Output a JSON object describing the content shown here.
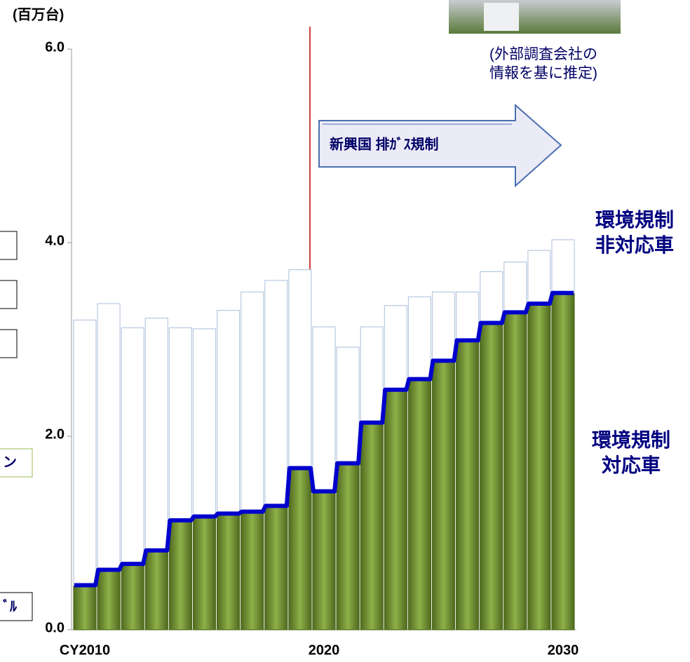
{
  "chart_data": {
    "type": "stacked-bar",
    "y_unit_label": "(百万台)",
    "categories": [
      "CY2010",
      null,
      null,
      null,
      null,
      null,
      null,
      null,
      null,
      null,
      "2020",
      null,
      null,
      null,
      null,
      null,
      null,
      null,
      null,
      null,
      "2030"
    ],
    "series": [
      {
        "name": "環境規制\n対応車",
        "color": "#77933c",
        "values": [
          0.46,
          0.62,
          0.68,
          0.82,
          1.13,
          1.17,
          1.2,
          1.22,
          1.28,
          1.67,
          1.43,
          1.72,
          2.14,
          2.48,
          2.59,
          2.78,
          2.99,
          3.17,
          3.28,
          3.37,
          3.48
        ]
      },
      {
        "name": "環境規制\n非対応車",
        "color": "#ffffff",
        "values": [
          2.74,
          2.75,
          2.44,
          2.4,
          1.99,
          1.94,
          2.1,
          2.27,
          2.33,
          2.05,
          1.7,
          1.2,
          0.99,
          0.87,
          0.85,
          0.71,
          0.5,
          0.53,
          0.52,
          0.55,
          0.55
        ]
      }
    ],
    "line_color": "#0000cc",
    "ylim": [
      0,
      6
    ],
    "yticks": [
      {
        "value": 0,
        "label": "0.0"
      },
      {
        "value": 2,
        "label": "2.0"
      },
      {
        "value": 4,
        "label": "4.0"
      },
      {
        "value": 6,
        "label": "6.0"
      }
    ],
    "source_note": "(外部調査会社の\n情報を基に推定)",
    "arrow_label": "新興国 排ｶﾞｽ規制",
    "left_fragments": [
      "ン",
      "ﾞﾙ"
    ]
  }
}
